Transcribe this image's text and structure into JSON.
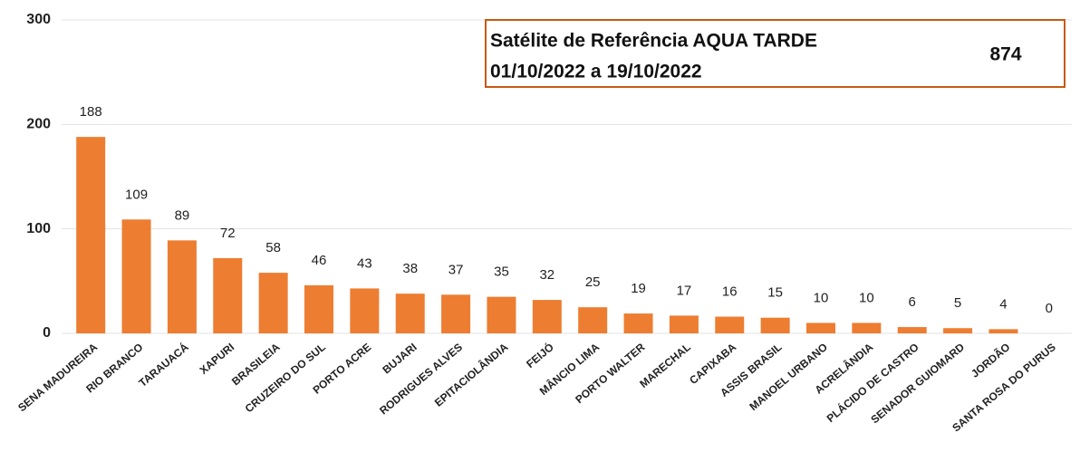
{
  "chart_data": {
    "type": "bar",
    "annotation": {
      "title": "Satélite de Referência AQUA TARDE",
      "period": "01/10/2022 a 19/10/2022",
      "total": 874
    },
    "categories": [
      "SENA MADUREIRA",
      "RIO BRANCO",
      "TARAUACÁ",
      "XAPURI",
      "BRASILEIA",
      "CRUZEIRO DO SUL",
      "PORTO ACRE",
      "BUJARI",
      "RODRIGUES ALVES",
      "EPITACIOLÂNDIA",
      "FEIJÓ",
      "MÂNCIO LIMA",
      "PORTO WALTER",
      "MARECHAL",
      "CAPIXABA",
      "ASSIS BRASIL",
      "MANOEL URBANO",
      "ACRELÂNDIA",
      "PLÁCIDO DE CASTRO",
      "SENADOR GUIOMARD",
      "JORDÃO",
      "SANTA ROSA DO PURUS"
    ],
    "values": [
      188,
      109,
      89,
      72,
      58,
      46,
      43,
      38,
      37,
      35,
      32,
      25,
      19,
      17,
      16,
      15,
      10,
      10,
      6,
      5,
      4,
      0
    ],
    "color": "#ed7d31",
    "ylim": [
      0,
      300
    ],
    "yticks": [
      0,
      100,
      200,
      300
    ],
    "grid": true
  }
}
